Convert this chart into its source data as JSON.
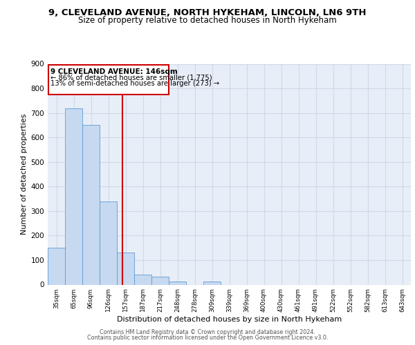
{
  "title1": "9, CLEVELAND AVENUE, NORTH HYKEHAM, LINCOLN, LN6 9TH",
  "title2": "Size of property relative to detached houses in North Hykeham",
  "xlabel": "Distribution of detached houses by size in North Hykeham",
  "ylabel": "Number of detached properties",
  "bin_labels": [
    "35sqm",
    "65sqm",
    "96sqm",
    "126sqm",
    "157sqm",
    "187sqm",
    "217sqm",
    "248sqm",
    "278sqm",
    "309sqm",
    "339sqm",
    "369sqm",
    "400sqm",
    "430sqm",
    "461sqm",
    "491sqm",
    "522sqm",
    "552sqm",
    "582sqm",
    "613sqm",
    "643sqm"
  ],
  "bar_heights": [
    150,
    720,
    650,
    340,
    130,
    42,
    32,
    12,
    0,
    12,
    0,
    0,
    0,
    0,
    0,
    0,
    0,
    0,
    0,
    0,
    0
  ],
  "bar_color": "#c6d9f0",
  "bar_edge_color": "#5b9bd5",
  "red_line_x": 3.82,
  "annotation_title": "9 CLEVELAND AVENUE: 146sqm",
  "annotation_line1": "← 86% of detached houses are smaller (1,775)",
  "annotation_line2": "13% of semi-detached houses are larger (273) →",
  "annotation_box_color": "#ffffff",
  "annotation_box_edge": "#cc0000",
  "red_line_color": "#cc0000",
  "grid_color": "#d0d8e8",
  "bg_color": "#e8eef7",
  "footer1": "Contains HM Land Registry data © Crown copyright and database right 2024.",
  "footer2": "Contains public sector information licensed under the Open Government Licence v3.0.",
  "ylim": [
    0,
    900
  ],
  "yticks": [
    0,
    100,
    200,
    300,
    400,
    500,
    600,
    700,
    800,
    900
  ]
}
